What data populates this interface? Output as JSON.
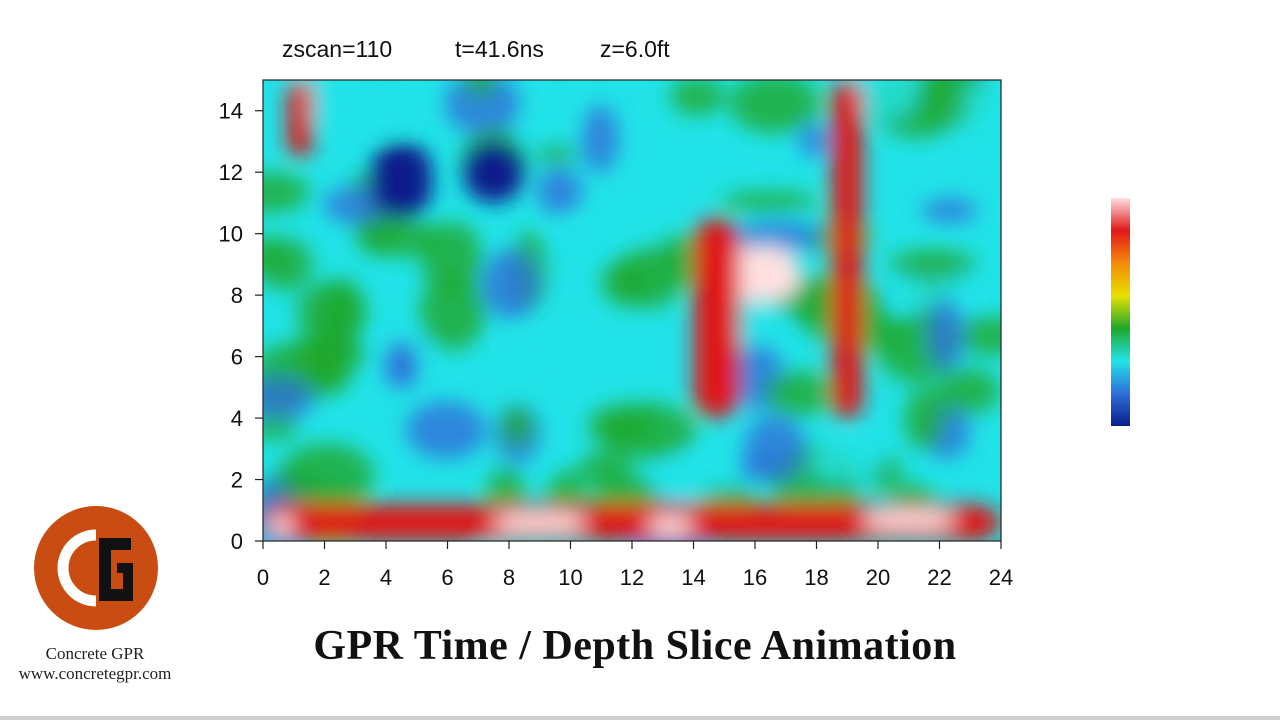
{
  "header": {
    "zscan": "zscan=110",
    "time": "t=41.6ns",
    "depth": "z=6.0ft"
  },
  "chart_data": {
    "type": "heatmap",
    "xlim": [
      0,
      24
    ],
    "ylim": [
      0,
      15
    ],
    "x_ticks": [
      "0",
      "2",
      "4",
      "6",
      "8",
      "10",
      "12",
      "14",
      "16",
      "18",
      "20",
      "22",
      "24"
    ],
    "y_ticks": [
      "0",
      "2",
      "4",
      "6",
      "8",
      "10",
      "12",
      "14"
    ],
    "colorscale": [
      "#0a1e8a",
      "#2f6fd8",
      "#22e3e8",
      "#1fa82a",
      "#e8e000",
      "#f58a0a",
      "#e01818",
      "#ffe0e0"
    ],
    "features": [
      {
        "kind": "band",
        "x": [
          0,
          24
        ],
        "y": [
          0,
          1.2
        ],
        "level": 0.85
      },
      {
        "kind": "blob",
        "x": [
          0.2,
          1.0
        ],
        "y": [
          0.2,
          0.8
        ],
        "level": 1.0
      },
      {
        "kind": "blob",
        "x": [
          7.5,
          10.5
        ],
        "y": [
          0.3,
          0.9
        ],
        "level": 1.0
      },
      {
        "kind": "blob",
        "x": [
          12.5,
          14
        ],
        "y": [
          0.2,
          0.8
        ],
        "level": 1.0
      },
      {
        "kind": "blob",
        "x": [
          19.5,
          22.5
        ],
        "y": [
          0.4,
          1.0
        ],
        "level": 1.0
      },
      {
        "kind": "column",
        "x": [
          0.8,
          1.6
        ],
        "y": [
          12.5,
          15
        ],
        "level": 0.8
      },
      {
        "kind": "blob",
        "x": [
          14.5,
          17.5
        ],
        "y": [
          7.8,
          9.6
        ],
        "level": 1.0
      },
      {
        "kind": "column",
        "x": [
          14,
          15.5
        ],
        "y": [
          4,
          10.5
        ],
        "level": 0.85
      },
      {
        "kind": "column",
        "x": [
          18.5,
          19.5
        ],
        "y": [
          4,
          15
        ],
        "level": 0.8
      },
      {
        "kind": "blob",
        "x": [
          3.5,
          5.5
        ],
        "y": [
          10.5,
          13
        ],
        "level": 0.05
      },
      {
        "kind": "blob",
        "x": [
          6.5,
          8.5
        ],
        "y": [
          11,
          13
        ],
        "level": 0.0
      },
      {
        "kind": "blob",
        "x": [
          4,
          5
        ],
        "y": [
          5,
          6.5
        ],
        "level": 0.1
      }
    ]
  },
  "colorbar": {
    "stops": [
      "#0a1e8a",
      "#2f6fd8",
      "#22e3e8",
      "#1fa82a",
      "#e8e000",
      "#f58a0a",
      "#e01818",
      "#ffe0e0"
    ]
  },
  "logo": {
    "bg_color": "#c94d12",
    "letters": "CG"
  },
  "brand": {
    "name": "Concrete GPR",
    "url": "www.concretegpr.com"
  },
  "footer": {
    "title": "GPR Time / Depth Slice Animation"
  }
}
